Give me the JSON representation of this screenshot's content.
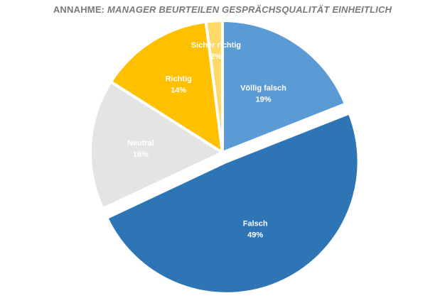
{
  "title": {
    "prefix": "ANNAHME:",
    "emphasis": "MANAGER BEURTEILEN GESPRÄCHSQUALITÄT EINHEITLICH"
  },
  "chart_data": {
    "type": "pie",
    "title": "ANNAHME: MANAGER BEURTEILEN GESPRÄCHSQUALITÄT EINHEITLICH",
    "start_angle_deg": 0,
    "direction": "clockwise",
    "slices": [
      {
        "label": "Völlig falsch",
        "value": 19,
        "value_label": "19%",
        "color": "#5b9bd5",
        "exploded": false
      },
      {
        "label": "Falsch",
        "value": 49,
        "value_label": "49%",
        "color": "#2e75b6",
        "exploded": true
      },
      {
        "label": "Neutral",
        "value": 16,
        "value_label": "16%",
        "color": "#e4e4e4",
        "exploded": false
      },
      {
        "label": "Richtig",
        "value": 14,
        "value_label": "14%",
        "color": "#ffc000",
        "exploded": false
      },
      {
        "label": "Sicher richtig",
        "value": 2,
        "value_label": "2%",
        "color": "#ffd966",
        "exploded": false
      }
    ],
    "legend": "none"
  }
}
